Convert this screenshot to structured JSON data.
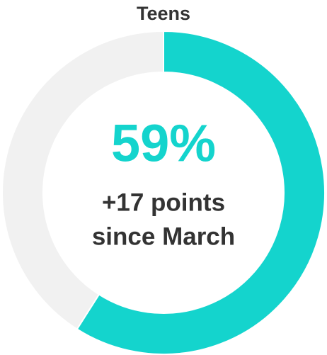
{
  "chart_data": {
    "type": "pie",
    "title": "Teens",
    "categories": [
      null,
      null
    ],
    "values": [
      59,
      41
    ],
    "value_labels": [
      "59%",
      null
    ],
    "colors": [
      "#14d4cd",
      "#f1f1f1"
    ],
    "annotation": [
      "+17 points",
      "since March"
    ]
  }
}
